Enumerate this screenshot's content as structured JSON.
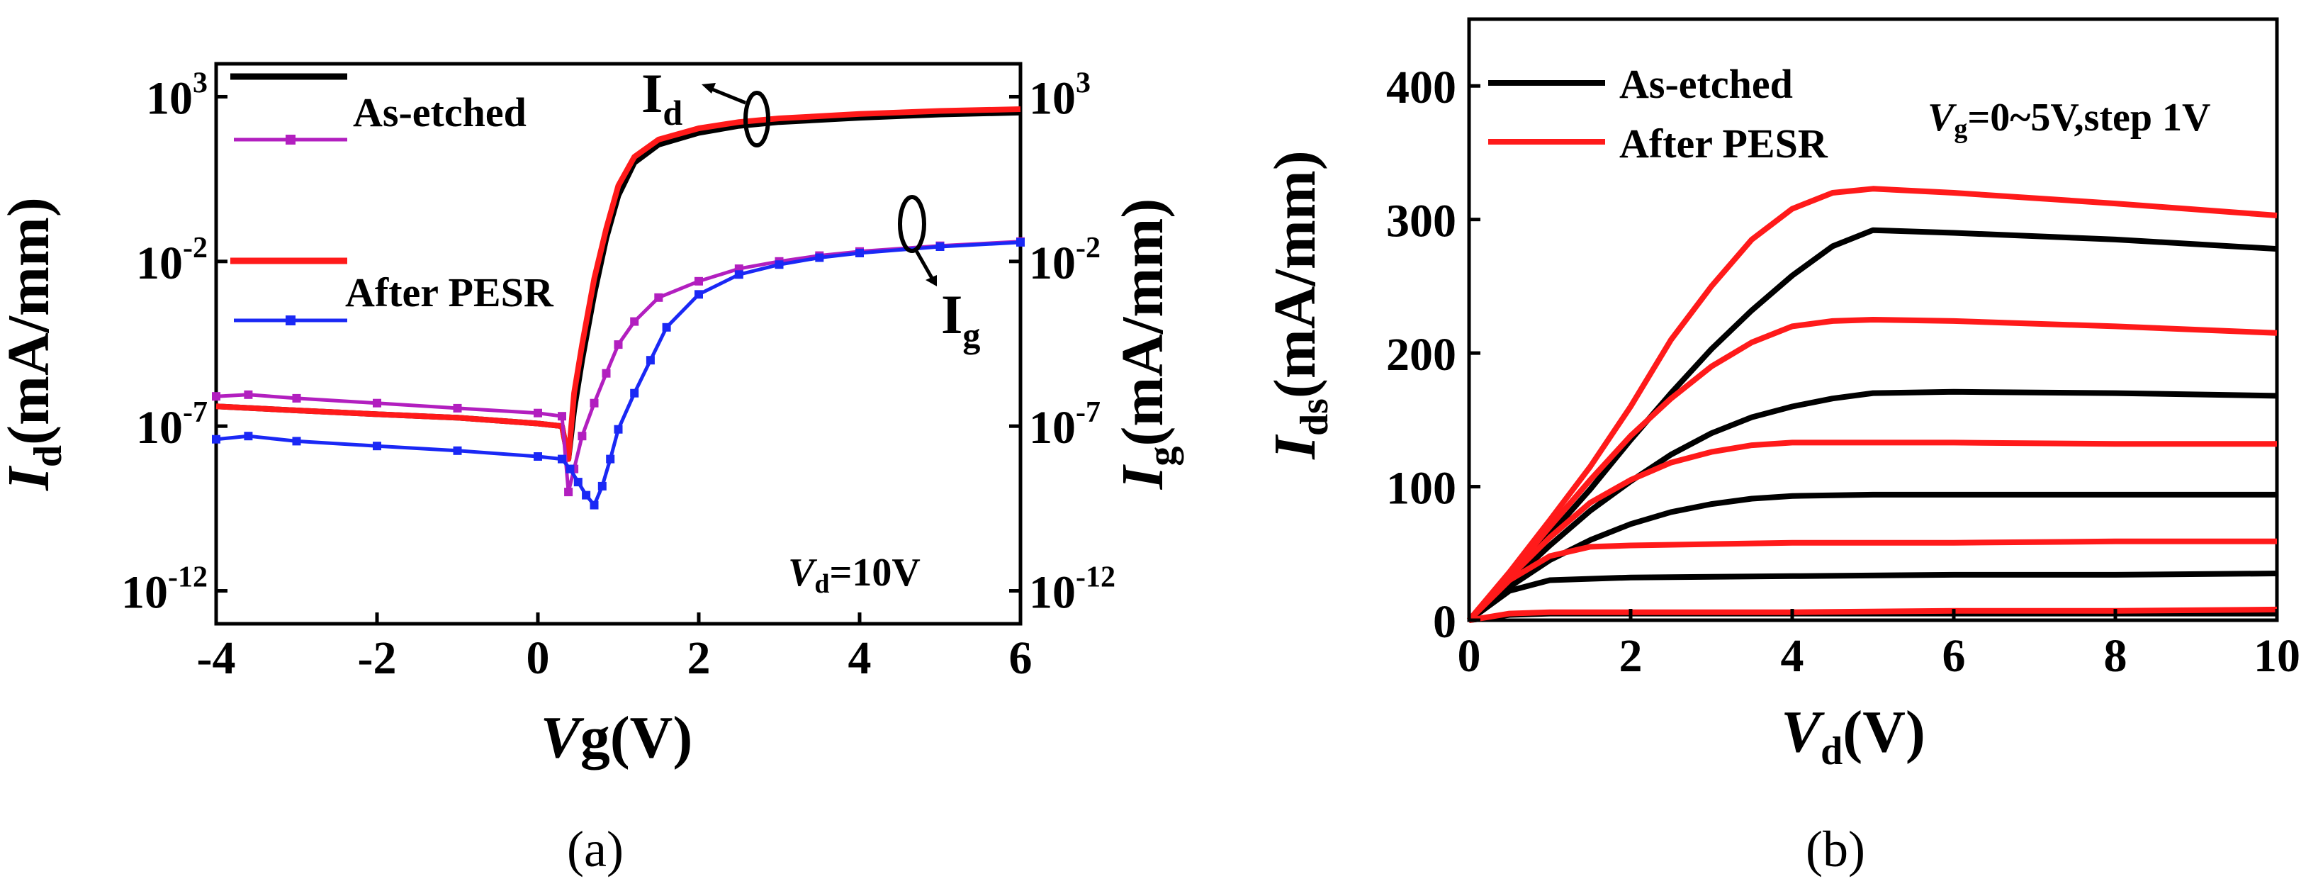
{
  "colors": {
    "as_etched": "#000000",
    "as_etched_ig": "#b21fbf",
    "after_pesr": "#ff1a1a",
    "after_pesr_ig": "#1a28f5"
  },
  "chart_data": [
    {
      "panel": "a",
      "type": "line",
      "y_scale": "log",
      "caption": "(a)",
      "xlabel_italic": "V",
      "xlabel_rest": "g(V)",
      "ylabel_left_italic": "I",
      "ylabel_left_sub": "d",
      "ylabel_left_rest": "(mA/mm)",
      "ylabel_right_italic": "I",
      "ylabel_right_sub": "g",
      "ylabel_right_rest": "(mA/mm)",
      "xlim": [
        -4,
        6
      ],
      "ylim": [
        1e-13,
        10000.0
      ],
      "x_ticks": [
        -4,
        -2,
        0,
        2,
        4,
        6
      ],
      "x_tick_labels": [
        "-4",
        "-2",
        "0",
        "2",
        "4",
        "6"
      ],
      "y_ticks": [
        {
          "base": "10",
          "exp": "3",
          "value": 1000
        },
        {
          "base": "10",
          "exp": "-2",
          "value": 0.01
        },
        {
          "base": "10",
          "exp": "-7",
          "value": 1e-07
        },
        {
          "base": "10",
          "exp": "-12",
          "value": 1e-12
        }
      ],
      "annotation": {
        "italic": "V",
        "sub": "d",
        "rest": "=10V"
      },
      "curve_label_id": {
        "main": "I",
        "sub": "d"
      },
      "curve_label_ig": {
        "main": "I",
        "sub": "g"
      },
      "legend": [
        "As-etched",
        "After PESR"
      ],
      "series": [
        {
          "name": "As-etched I_d",
          "color_key": "as_etched",
          "marker": false,
          "x": [
            -4,
            -3,
            -2,
            -1,
            0,
            0.3,
            0.38,
            0.45,
            0.55,
            0.7,
            0.85,
            1.0,
            1.2,
            1.5,
            2.0,
            2.5,
            3.0,
            4.0,
            5.0,
            6.0
          ],
          "y": [
            4e-07,
            3e-07,
            2.3e-07,
            1.8e-07,
            1.2e-07,
            1e-07,
            1e-08,
            3e-07,
            1e-05,
            0.001,
            0.05,
            1,
            10,
            35,
            80,
            130,
            170,
            230,
            290,
            330
          ]
        },
        {
          "name": "After PESR I_d",
          "color_key": "after_pesr",
          "marker": false,
          "x": [
            -4,
            -3,
            -2,
            -1,
            0,
            0.3,
            0.38,
            0.45,
            0.55,
            0.7,
            0.85,
            1.0,
            1.2,
            1.5,
            2.0,
            2.5,
            3.0,
            4.0,
            5.0,
            6.0
          ],
          "y": [
            4e-07,
            3e-07,
            2.3e-07,
            1.8e-07,
            1.2e-07,
            1e-07,
            1e-08,
            1e-06,
            3e-05,
            0.003,
            0.1,
            2,
            15,
            50,
            110,
            170,
            220,
            300,
            370,
            420
          ]
        },
        {
          "name": "As-etched I_g",
          "color_key": "as_etched_ig",
          "marker": true,
          "x": [
            -4,
            -3.6,
            -3,
            -2,
            -1,
            0,
            0.3,
            0.38,
            0.45,
            0.55,
            0.7,
            0.85,
            1.0,
            1.2,
            1.5,
            2.0,
            2.5,
            3.0,
            3.5,
            4.0,
            5.0,
            6.0
          ],
          "y": [
            8e-07,
            9e-07,
            7e-07,
            5e-07,
            3.5e-07,
            2.5e-07,
            2e-07,
            1e-09,
            5e-09,
            5e-08,
            5e-07,
            4e-06,
            3e-05,
            0.00015,
            0.0008,
            0.0025,
            0.006,
            0.01,
            0.015,
            0.02,
            0.03,
            0.04
          ]
        },
        {
          "name": "After PESR I_g",
          "color_key": "after_pesr_ig",
          "marker": true,
          "x": [
            -4,
            -3.6,
            -3,
            -2,
            -1,
            0,
            0.3,
            0.4,
            0.5,
            0.6,
            0.7,
            0.8,
            0.9,
            1.0,
            1.2,
            1.4,
            1.6,
            2.0,
            2.5,
            3.0,
            3.5,
            4.0,
            5.0,
            6.0
          ],
          "y": [
            4e-08,
            5e-08,
            3.5e-08,
            2.5e-08,
            1.8e-08,
            1.2e-08,
            1e-08,
            5e-09,
            2e-09,
            8e-10,
            4e-10,
            1.5e-09,
            1e-08,
            8e-08,
            1e-06,
            1e-05,
            0.0001,
            0.001,
            0.004,
            0.008,
            0.013,
            0.018,
            0.028,
            0.038
          ]
        }
      ]
    },
    {
      "panel": "b",
      "type": "line",
      "caption": "(b)",
      "xlabel_italic": "V",
      "xlabel_sub": "d",
      "xlabel_rest": "(V)",
      "ylabel_italic": "I",
      "ylabel_sub": "ds",
      "ylabel_rest": "(mA/mm)",
      "xlim": [
        0,
        10
      ],
      "ylim": [
        0,
        450
      ],
      "x_ticks": [
        0,
        2,
        4,
        6,
        8,
        10
      ],
      "x_tick_labels": [
        "0",
        "2",
        "4",
        "6",
        "8",
        "10"
      ],
      "y_ticks": [
        0,
        100,
        200,
        300,
        400
      ],
      "y_tick_labels": [
        "0",
        "100",
        "200",
        "300",
        "400"
      ],
      "annotation": {
        "italic": "V",
        "sub": "g",
        "rest": "=0~5V,step 1V"
      },
      "legend": [
        "As-etched",
        "After PESR"
      ],
      "series": [
        {
          "name": "As-etched Vg=0V",
          "color_key": "as_etched",
          "x": [
            0,
            0.5,
            1,
            2,
            4,
            6,
            8,
            10
          ],
          "y": [
            0,
            4,
            5,
            5,
            5,
            5,
            5,
            5
          ]
        },
        {
          "name": "As-etched Vg=1V",
          "color_key": "as_etched",
          "x": [
            0,
            0.5,
            1,
            2,
            4,
            6,
            8,
            10
          ],
          "y": [
            0,
            22,
            30,
            32,
            33,
            34,
            34,
            35
          ]
        },
        {
          "name": "As-etched Vg=2V",
          "color_key": "as_etched",
          "x": [
            0,
            0.5,
            1,
            1.5,
            2,
            2.5,
            3,
            3.5,
            4,
            5,
            6,
            8,
            10
          ],
          "y": [
            0,
            25,
            45,
            60,
            72,
            81,
            87,
            91,
            93,
            94,
            94,
            94,
            94
          ]
        },
        {
          "name": "As-etched Vg=3V",
          "color_key": "as_etched",
          "x": [
            0,
            0.5,
            1,
            1.5,
            2,
            2.5,
            3,
            3.5,
            4,
            4.5,
            5,
            6,
            8,
            10
          ],
          "y": [
            0,
            28,
            56,
            82,
            104,
            124,
            140,
            152,
            160,
            166,
            170,
            171,
            170,
            168
          ]
        },
        {
          "name": "As-etched Vg=4V",
          "color_key": "as_etched",
          "x": [
            0,
            0.5,
            1,
            1.5,
            2,
            2.5,
            3,
            3.5,
            4,
            4.5,
            5,
            6,
            8,
            10
          ],
          "y": [
            0,
            31,
            64,
            98,
            135,
            170,
            203,
            232,
            258,
            280,
            292,
            290,
            285,
            278
          ]
        },
        {
          "name": "After PESR Vg=0V",
          "color_key": "after_pesr",
          "x": [
            0,
            0.5,
            1,
            2,
            4,
            6,
            8,
            10
          ],
          "y": [
            0,
            5,
            6,
            6,
            6,
            7,
            7,
            8
          ]
        },
        {
          "name": "After PESR Vg=1V",
          "color_key": "after_pesr",
          "x": [
            0,
            0.5,
            1,
            1.5,
            2,
            4,
            6,
            8,
            10
          ],
          "y": [
            0,
            30,
            48,
            55,
            56,
            58,
            58,
            59,
            59
          ]
        },
        {
          "name": "After PESR Vg=2V",
          "color_key": "after_pesr",
          "x": [
            0,
            0.5,
            1,
            1.5,
            2,
            2.5,
            3,
            3.5,
            4,
            5,
            6,
            8,
            10
          ],
          "y": [
            0,
            32,
            62,
            88,
            105,
            118,
            126,
            131,
            133,
            133,
            133,
            132,
            132
          ]
        },
        {
          "name": "After PESR Vg=3V",
          "color_key": "after_pesr",
          "x": [
            0,
            0.5,
            1,
            1.5,
            2,
            2.5,
            3,
            3.5,
            4,
            4.5,
            5,
            6,
            8,
            10
          ],
          "y": [
            0,
            34,
            70,
            105,
            138,
            166,
            190,
            208,
            220,
            224,
            225,
            224,
            220,
            215
          ]
        },
        {
          "name": "After PESR Vg=4V",
          "color_key": "after_pesr",
          "x": [
            0,
            0.5,
            1,
            1.5,
            2,
            2.5,
            3,
            3.5,
            4,
            4.5,
            5,
            6,
            8,
            10
          ],
          "y": [
            0,
            36,
            75,
            115,
            160,
            210,
            250,
            285,
            308,
            320,
            323,
            320,
            312,
            303
          ]
        }
      ]
    }
  ]
}
